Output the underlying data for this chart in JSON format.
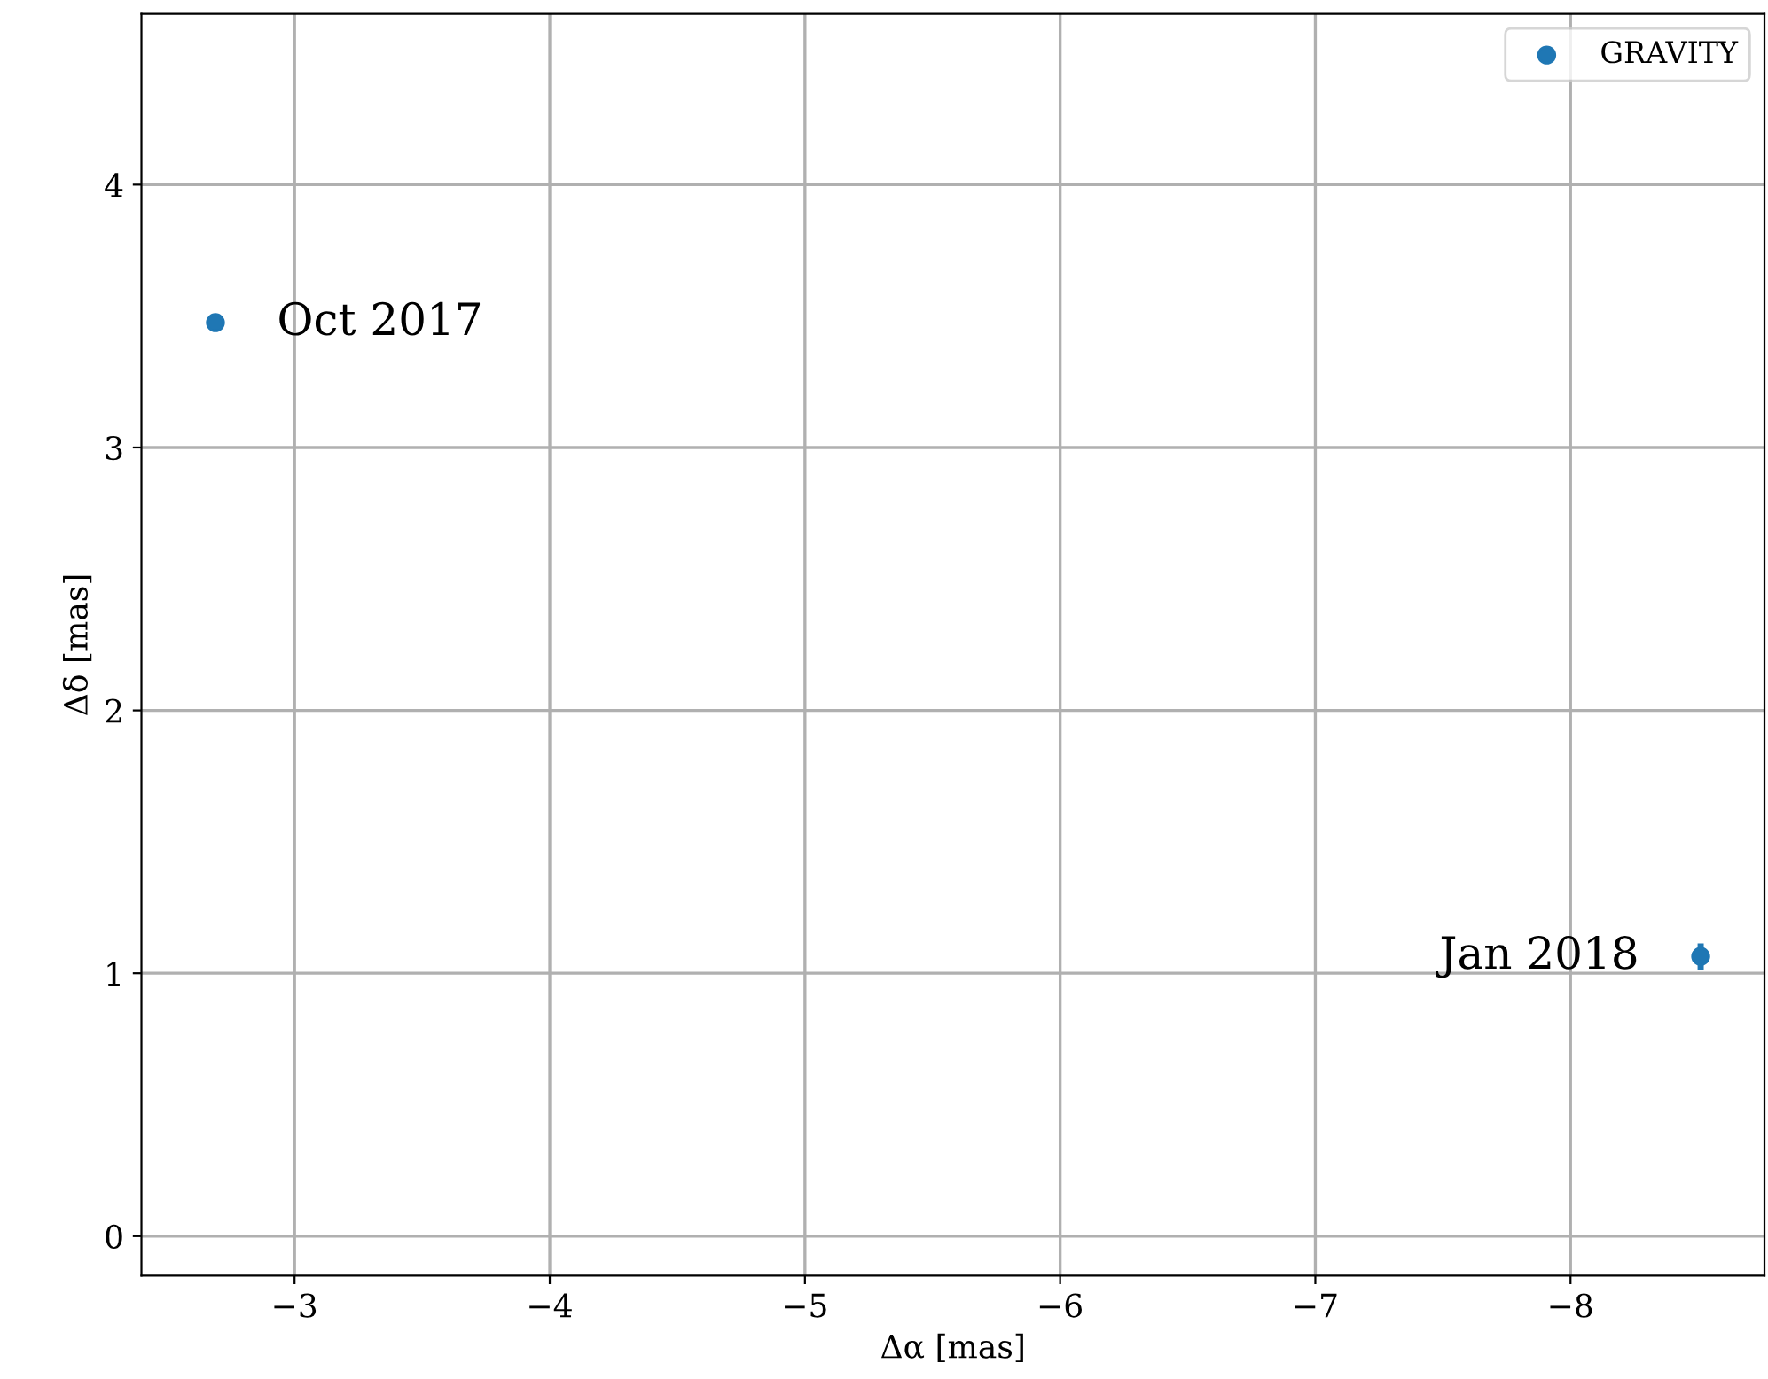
{
  "chart_data": {
    "type": "scatter",
    "xlabel": "Δα [mas]",
    "ylabel": "Δδ [mas]",
    "x": [
      -2.69,
      -8.51
    ],
    "series": [
      {
        "name": "GRAVITY",
        "color": "#1f77b4",
        "values": [
          3.475,
          1.064
        ],
        "errors": [
          null,
          0.05
        ]
      }
    ],
    "xlim": [
      -2.4,
      -8.76
    ],
    "ylim": [
      -0.15,
      4.65
    ],
    "xticks": [
      {
        "value": -3,
        "label": "−3"
      },
      {
        "value": -4,
        "label": "−4"
      },
      {
        "value": -5,
        "label": "−5"
      },
      {
        "value": -6,
        "label": "−6"
      },
      {
        "value": -7,
        "label": "−7"
      },
      {
        "value": -8,
        "label": "−8"
      }
    ],
    "yticks": [
      0,
      1,
      2,
      3,
      4
    ],
    "annotations": [
      {
        "text": "Oct 2017",
        "x": -2.69,
        "y": 3.475
      },
      {
        "text": "Jan 2018",
        "x": -8.51,
        "y": 1.064
      }
    ],
    "grid": true,
    "legend": "top right",
    "marker": "circle"
  }
}
